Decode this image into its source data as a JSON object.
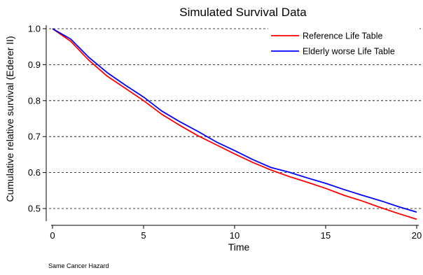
{
  "chart_data": {
    "type": "line",
    "title": "Simulated Survival Data",
    "xlabel": "Time",
    "ylabel": "Cumulative relative survival (Ederer II)",
    "note": "Same Cancer Hazard",
    "xlim": [
      -0.3,
      20.3
    ],
    "ylim": [
      0.465,
      1.01
    ],
    "x_ticks": [
      0,
      5,
      10,
      15,
      20
    ],
    "y_ticks": [
      0.5,
      0.6,
      0.7,
      0.8,
      0.9,
      1.0
    ],
    "x_tick_labels": [
      "0",
      "5",
      "10",
      "15",
      "20"
    ],
    "y_tick_labels": [
      "0.5",
      "0.6",
      "0.7",
      "0.8",
      "0.9",
      "1.0"
    ],
    "grid": "horizontal dashed",
    "legend_position": "top-right",
    "series": [
      {
        "name": "Reference Life Table",
        "color": "#ff0000",
        "x": [
          0,
          1,
          2,
          3,
          4,
          5,
          6,
          7,
          8,
          9,
          10,
          11,
          12,
          13,
          14,
          15,
          16,
          17,
          18,
          19,
          20
        ],
        "y": [
          1.0,
          0.965,
          0.912,
          0.868,
          0.834,
          0.8,
          0.762,
          0.731,
          0.702,
          0.677,
          0.652,
          0.628,
          0.607,
          0.589,
          0.573,
          0.556,
          0.537,
          0.521,
          0.503,
          0.486,
          0.47
        ]
      },
      {
        "name": "Elderly worse Life Table",
        "color": "#0000ff",
        "x": [
          0,
          1,
          2,
          3,
          4,
          5,
          6,
          7,
          8,
          9,
          10,
          11,
          12,
          13,
          14,
          15,
          16,
          17,
          18,
          19,
          20
        ],
        "y": [
          1.0,
          0.971,
          0.92,
          0.878,
          0.843,
          0.81,
          0.771,
          0.741,
          0.714,
          0.685,
          0.661,
          0.636,
          0.614,
          0.601,
          0.585,
          0.57,
          0.553,
          0.537,
          0.522,
          0.505,
          0.49
        ]
      }
    ]
  }
}
